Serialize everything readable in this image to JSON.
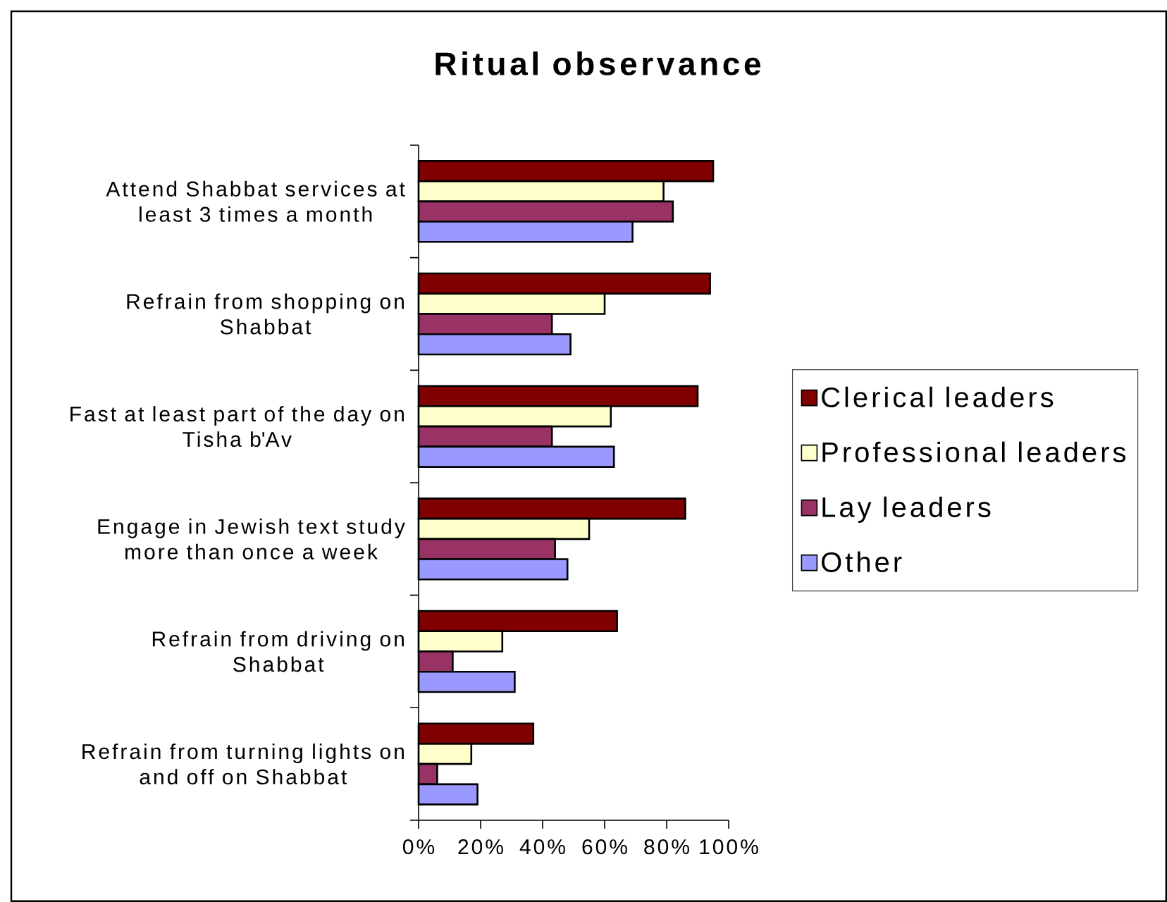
{
  "chart_data": {
    "type": "bar",
    "orientation": "horizontal",
    "title": "Ritual observance",
    "categories": [
      "Attend Shabbat services at least 3 times a month",
      "Refrain from shopping on Shabbat",
      "Fast at least part of the day on Tisha b'Av",
      "Engage in Jewish text study more than once a week",
      "Refrain from driving on Shabbat",
      "Refrain from turning lights on and off on Shabbat"
    ],
    "series": [
      {
        "name": "Clerical leaders",
        "color": "#800000",
        "values": [
          95,
          94,
          90,
          86,
          64,
          37
        ]
      },
      {
        "name": "Professional leaders",
        "color": "#ffffcc",
        "values": [
          79,
          60,
          62,
          55,
          27,
          17
        ]
      },
      {
        "name": "Lay leaders",
        "color": "#993366",
        "values": [
          82,
          43,
          43,
          44,
          11,
          6
        ]
      },
      {
        "name": "Other",
        "color": "#9999ff",
        "values": [
          69,
          49,
          63,
          48,
          31,
          19
        ]
      }
    ],
    "xlim": [
      0,
      100
    ],
    "xticks": [
      {
        "value": 0,
        "label": "0%"
      },
      {
        "value": 20,
        "label": "20%"
      },
      {
        "value": 40,
        "label": "40%"
      },
      {
        "value": 60,
        "label": "60%"
      },
      {
        "value": 80,
        "label": "80%"
      },
      {
        "value": 100,
        "label": "100%"
      }
    ],
    "legend": "right"
  }
}
